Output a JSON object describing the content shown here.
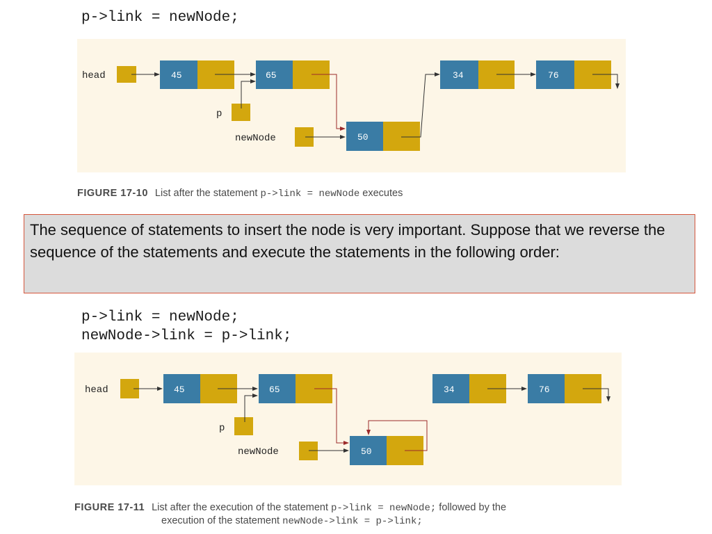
{
  "top": {
    "code_line": "p->link = newNode;",
    "diagram": {
      "head_label": "head",
      "p_label": "p",
      "newnode_label": "newNode",
      "values": [
        "45",
        "65",
        "50",
        "34",
        "76"
      ]
    },
    "caption": {
      "fignum": "FIGURE 17-10",
      "text_a": "List after the statement ",
      "code": "p->link = newNode",
      "text_b": " executes"
    }
  },
  "callout": {
    "text": "The sequence of statements to insert the node is very important. Suppose that we reverse the sequence of the statements and execute the statements in the following order:"
  },
  "bottom": {
    "code_line_1": "p->link = newNode;",
    "code_line_2": "newNode->link = p->link;",
    "diagram": {
      "head_label": "head",
      "p_label": "p",
      "newnode_label": "newNode",
      "values": [
        "45",
        "65",
        "50",
        "34",
        "76"
      ]
    },
    "caption": {
      "fignum": "FIGURE 17-11",
      "line1_a": "List after the execution of the statement ",
      "line1_code": "p->link = newNode;",
      "line1_b": " followed by the",
      "line2_a": "execution of the statement ",
      "line2_code": "newNode->link = p->link;"
    }
  },
  "colors": {
    "info": "#3a7ca5",
    "link": "#d3a70e",
    "panel": "#fdf6e7",
    "red_arrow": "#9b2a2a",
    "black_arrow": "#333333"
  }
}
